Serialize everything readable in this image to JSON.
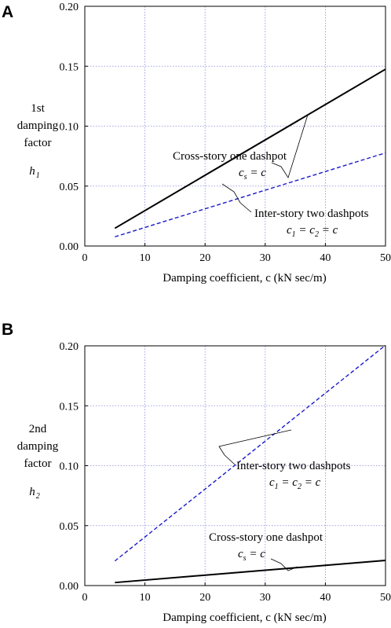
{
  "chart_data": [
    {
      "panel": "A",
      "type": "line",
      "xlabel": "Damping coefficient, c (kN sec/m)",
      "ylabel_lines": [
        "1st",
        "damping",
        "factor"
      ],
      "ylabel_symbol": "h",
      "ylabel_symbol_sub": "1",
      "xlim": [
        0,
        50
      ],
      "ylim": [
        0,
        0.2
      ],
      "x_ticks": [
        "0",
        "10",
        "20",
        "30",
        "40",
        "50"
      ],
      "y_ticks": [
        "0.00",
        "0.05",
        "0.10",
        "0.15",
        "0.20"
      ],
      "grid": true,
      "series": [
        {
          "name": "Cross-story one dashpot",
          "style": "solid",
          "color": "#000000",
          "x": [
            5,
            50
          ],
          "y": [
            0.0148,
            0.1475
          ],
          "annotation": {
            "line1": "Cross-story one dashpot",
            "eq_var": "c",
            "eq_sub": "s",
            "eq_rest": " = c"
          }
        },
        {
          "name": "Inter-story two dashpots",
          "style": "dashed",
          "color": "#1a1acc",
          "x": [
            5,
            50
          ],
          "y": [
            0.0077,
            0.0777
          ],
          "annotation": {
            "line1": "Inter-story two dashpots",
            "eq_var": "c",
            "eq_sub": "1",
            "eq_mid": " = c",
            "eq_sub2": "2",
            "eq_rest": " = c"
          }
        }
      ]
    },
    {
      "panel": "B",
      "type": "line",
      "xlabel": "Damping coefficient, c (kN sec/m)",
      "ylabel_lines": [
        "2nd",
        "damping",
        "factor"
      ],
      "ylabel_symbol": "h",
      "ylabel_symbol_sub": "2",
      "xlim": [
        0,
        50
      ],
      "ylim": [
        0,
        0.2
      ],
      "x_ticks": [
        "0",
        "10",
        "20",
        "30",
        "40",
        "50"
      ],
      "y_ticks": [
        "0.00",
        "0.05",
        "0.10",
        "0.15",
        "0.20"
      ],
      "grid": true,
      "series": [
        {
          "name": "Inter-story two dashpots",
          "style": "dashed",
          "color": "#1a1acc",
          "x": [
            5,
            50
          ],
          "y": [
            0.0205,
            0.2005
          ],
          "annotation": {
            "line1": "Inter-story two dashpots",
            "eq_var": "c",
            "eq_sub": "1",
            "eq_mid": " = c",
            "eq_sub2": "2",
            "eq_rest": " = c"
          }
        },
        {
          "name": "Cross-story one dashpot",
          "style": "solid",
          "color": "#000000",
          "x": [
            5,
            50
          ],
          "y": [
            0.0025,
            0.021
          ],
          "annotation": {
            "line1": "Cross-story one dashpot",
            "eq_var": "c",
            "eq_sub": "s",
            "eq_rest": " = c"
          }
        }
      ]
    }
  ]
}
